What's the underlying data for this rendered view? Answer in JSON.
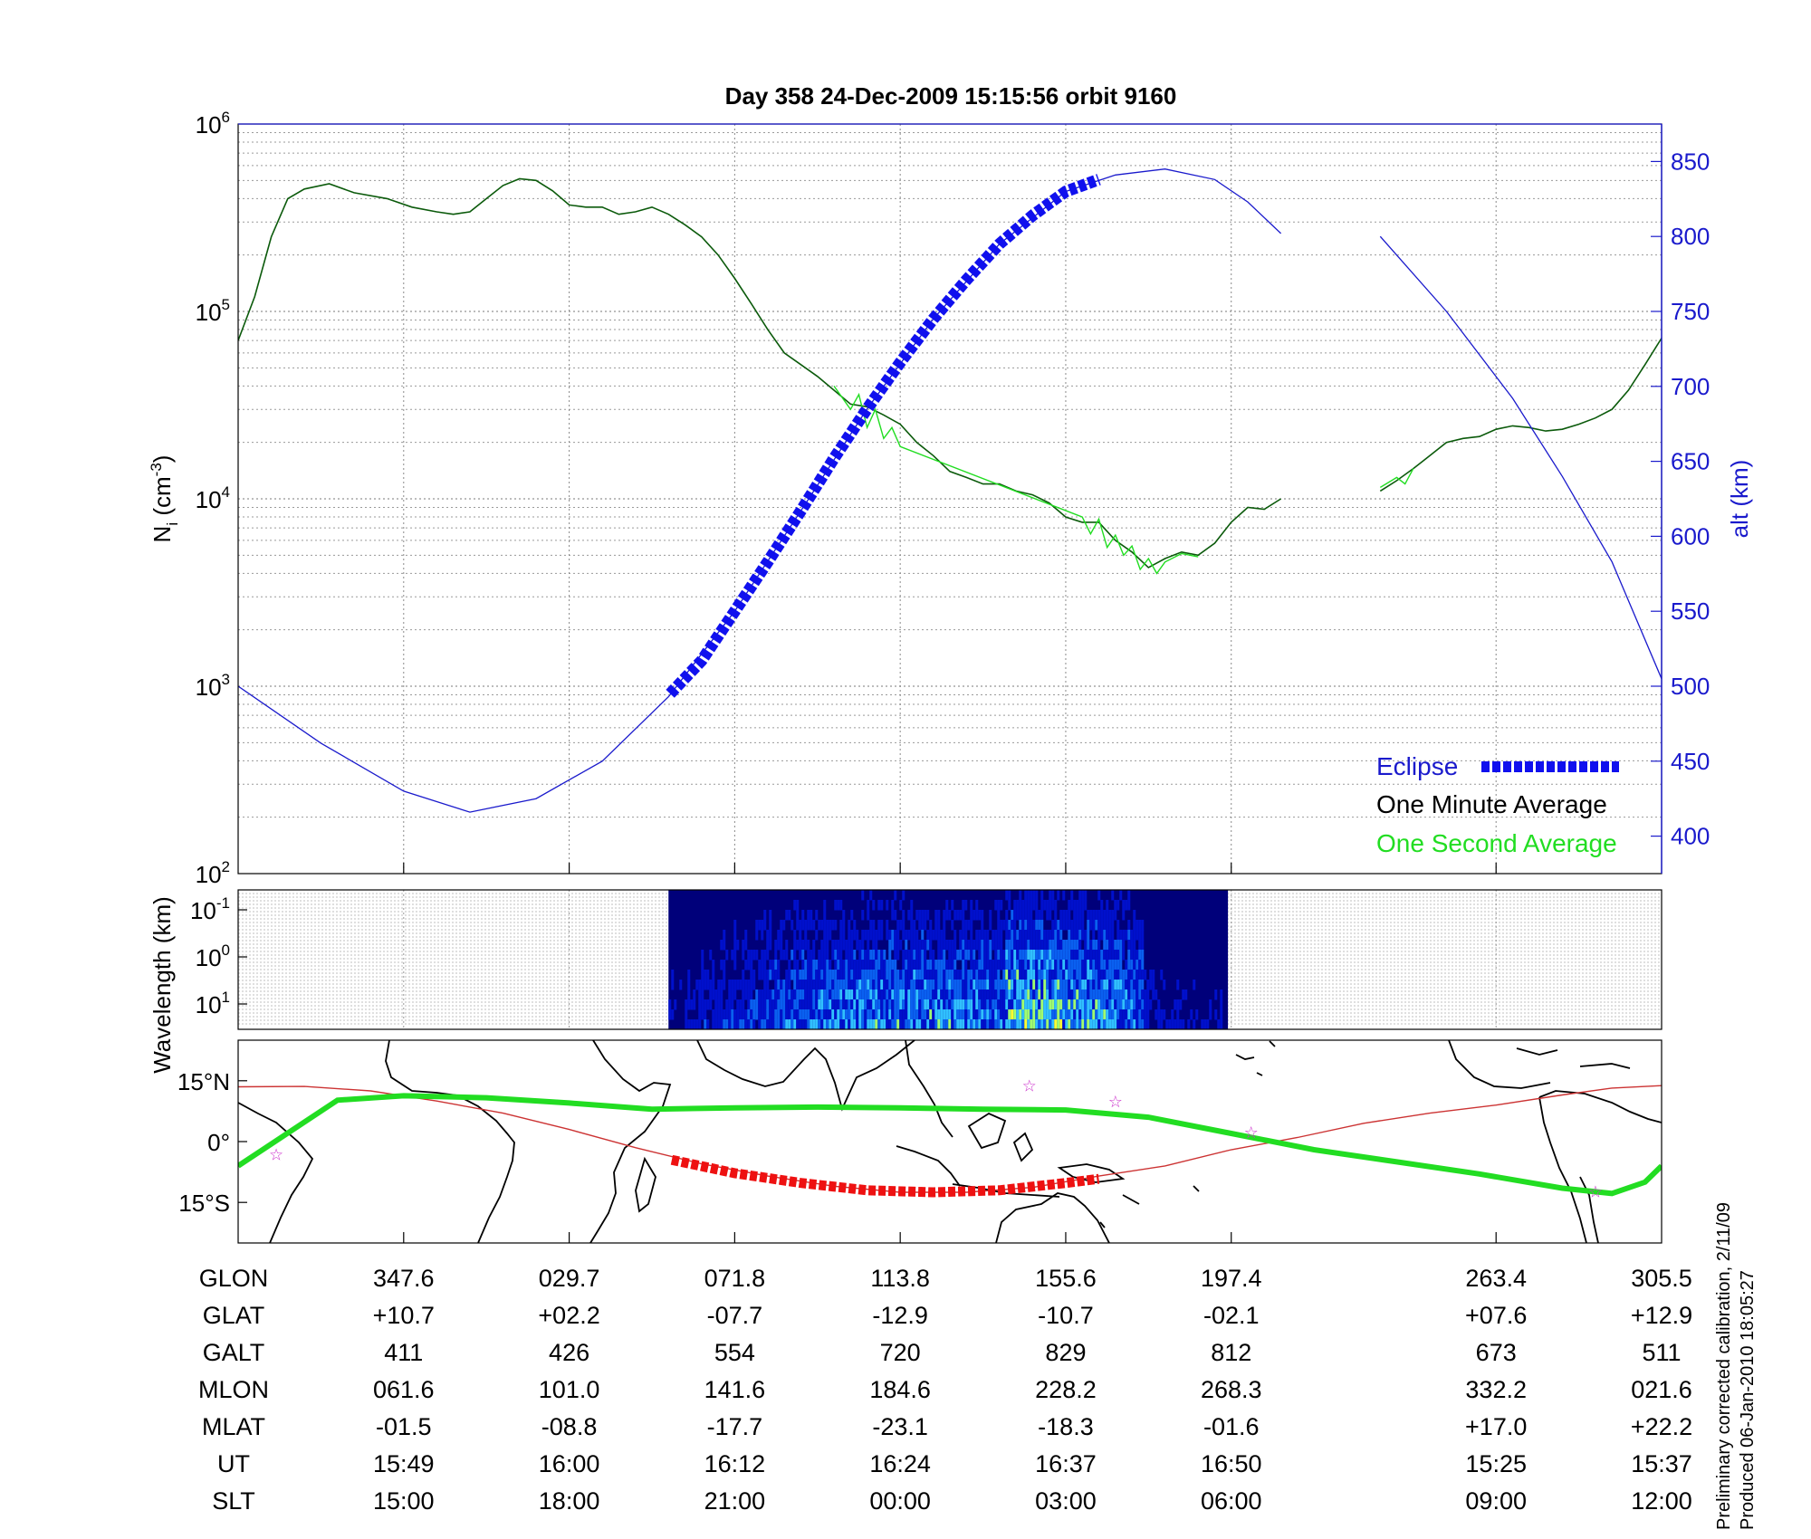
{
  "title": "Day 358  24-Dec-2009 15:15:56   orbit 9160",
  "chart_data": [
    {
      "type": "line",
      "panel": "density",
      "ylabel": "N",
      "ylabel_sub": "i",
      "ylabel_unit_open": " (cm",
      "ylabel_unit_sup": "-3",
      "ylabel_unit_close": ")",
      "yscale": "log",
      "ylim": [
        100,
        1000000
      ],
      "yticks": [
        {
          "base": "10",
          "exp": "2",
          "value": 100
        },
        {
          "base": "10",
          "exp": "3",
          "value": 1000
        },
        {
          "base": "10",
          "exp": "4",
          "value": 10000
        },
        {
          "base": "10",
          "exp": "5",
          "value": 100000
        },
        {
          "base": "10",
          "exp": "6",
          "value": 1000000
        }
      ],
      "xlim": [
        0,
        8.6
      ],
      "right_axis": {
        "label": "alt (km)",
        "ylim": [
          375,
          875
        ],
        "ticks": [
          "400",
          "450",
          "500",
          "550",
          "600",
          "650",
          "700",
          "750",
          "800",
          "850"
        ]
      },
      "series": [
        {
          "name": "One Minute Average",
          "color": "#0b5a0b",
          "segments": [
            [
              [
                0,
                70000
              ],
              [
                0.1,
                120000
              ],
              [
                0.2,
                250000
              ],
              [
                0.3,
                400000
              ],
              [
                0.4,
                450000
              ],
              [
                0.55,
                480000
              ],
              [
                0.7,
                430000
              ],
              [
                0.9,
                400000
              ],
              [
                1.05,
                360000
              ],
              [
                1.2,
                340000
              ],
              [
                1.3,
                330000
              ],
              [
                1.4,
                340000
              ],
              [
                1.5,
                400000
              ],
              [
                1.6,
                470000
              ],
              [
                1.7,
                510000
              ],
              [
                1.8,
                500000
              ],
              [
                1.9,
                440000
              ],
              [
                2.0,
                370000
              ],
              [
                2.1,
                360000
              ],
              [
                2.2,
                360000
              ],
              [
                2.3,
                330000
              ],
              [
                2.4,
                340000
              ],
              [
                2.5,
                360000
              ],
              [
                2.6,
                330000
              ],
              [
                2.7,
                290000
              ],
              [
                2.8,
                250000
              ],
              [
                2.9,
                200000
              ],
              [
                3.0,
                150000
              ],
              [
                3.1,
                110000
              ],
              [
                3.2,
                80000
              ],
              [
                3.3,
                60000
              ],
              [
                3.4,
                52000
              ],
              [
                3.5,
                45000
              ],
              [
                3.6,
                38000
              ],
              [
                3.7,
                32000
              ],
              [
                3.8,
                31000
              ],
              [
                3.9,
                28000
              ],
              [
                4.0,
                25000
              ],
              [
                4.1,
                20000
              ],
              [
                4.2,
                17000
              ],
              [
                4.3,
                14000
              ],
              [
                4.4,
                13000
              ],
              [
                4.5,
                12000
              ],
              [
                4.6,
                12000
              ],
              [
                4.7,
                11000
              ],
              [
                4.8,
                10500
              ],
              [
                4.9,
                9500
              ],
              [
                5.0,
                8000
              ],
              [
                5.1,
                7500
              ],
              [
                5.2,
                7500
              ],
              [
                5.3,
                6000
              ],
              [
                5.4,
                5200
              ],
              [
                5.5,
                4300
              ],
              [
                5.6,
                4800
              ],
              [
                5.7,
                5200
              ],
              [
                5.8,
                5000
              ],
              [
                5.9,
                5800
              ],
              [
                6.0,
                7500
              ],
              [
                6.1,
                9000
              ],
              [
                6.2,
                8800
              ],
              [
                6.3,
                10000
              ]
            ],
            [
              [
                6.9,
                11000
              ],
              [
                7.0,
                12500
              ],
              [
                7.1,
                14500
              ],
              [
                7.2,
                17000
              ],
              [
                7.3,
                20000
              ],
              [
                7.4,
                21000
              ],
              [
                7.5,
                21500
              ],
              [
                7.6,
                23500
              ],
              [
                7.7,
                24500
              ],
              [
                7.8,
                24000
              ],
              [
                7.9,
                23000
              ],
              [
                8.0,
                23500
              ],
              [
                8.1,
                25000
              ],
              [
                8.2,
                27000
              ],
              [
                8.3,
                30000
              ],
              [
                8.4,
                38000
              ],
              [
                8.5,
                52000
              ],
              [
                8.6,
                72000
              ]
            ]
          ]
        },
        {
          "name": "One Second Average",
          "color": "#22dd22",
          "segments": [
            [
              [
                3.6,
                40000
              ],
              [
                3.7,
                30000
              ],
              [
                3.75,
                36000
              ],
              [
                3.8,
                24000
              ],
              [
                3.85,
                30000
              ],
              [
                3.9,
                21000
              ],
              [
                3.95,
                24000
              ],
              [
                4.0,
                19000
              ],
              [
                5.1,
                8000
              ],
              [
                5.15,
                6500
              ],
              [
                5.2,
                7800
              ],
              [
                5.25,
                5500
              ],
              [
                5.3,
                6400
              ],
              [
                5.35,
                5000
              ],
              [
                5.4,
                5600
              ],
              [
                5.45,
                4200
              ],
              [
                5.5,
                4800
              ],
              [
                5.55,
                4000
              ],
              [
                5.6,
                4600
              ],
              [
                5.7,
                5100
              ],
              [
                5.8,
                4900
              ]
            ],
            [
              [
                6.9,
                11500
              ],
              [
                7.0,
                13000
              ],
              [
                7.05,
                12000
              ],
              [
                7.1,
                14500
              ]
            ]
          ]
        },
        {
          "name": "alt",
          "color": "#1a1acc",
          "axis": "right",
          "segments": [
            [
              [
                0,
                500
              ],
              [
                0.5,
                462
              ],
              [
                1.0,
                430
              ],
              [
                1.4,
                416
              ],
              [
                1.8,
                425
              ],
              [
                2.2,
                450
              ],
              [
                2.6,
                493
              ],
              [
                3.0,
                550
              ],
              [
                3.4,
                617
              ],
              [
                3.8,
                685
              ],
              [
                4.2,
                745
              ],
              [
                4.6,
                795
              ],
              [
                5.0,
                830
              ],
              [
                5.3,
                841
              ],
              [
                5.6,
                845
              ],
              [
                5.9,
                838
              ],
              [
                6.1,
                823
              ],
              [
                6.3,
                802
              ]
            ],
            [
              [
                6.9,
                800
              ],
              [
                7.3,
                750
              ],
              [
                7.7,
                692
              ],
              [
                8.0,
                640
              ],
              [
                8.3,
                583
              ],
              [
                8.6,
                505
              ]
            ]
          ]
        },
        {
          "name": "Eclipse",
          "color": "#1010ee",
          "axis": "right",
          "points": [
            [
              2.61,
              495
            ],
            [
              2.8,
              517
            ],
            [
              3.0,
              550
            ],
            [
              3.2,
              583
            ],
            [
              3.4,
              617
            ],
            [
              3.6,
              652
            ],
            [
              3.8,
              685
            ],
            [
              4.0,
              716
            ],
            [
              4.2,
              745
            ],
            [
              4.4,
              771
            ],
            [
              4.6,
              795
            ],
            [
              4.8,
              814
            ],
            [
              5.0,
              830
            ],
            [
              5.2,
              838
            ]
          ]
        }
      ],
      "legend": [
        "Eclipse",
        "One Minute Average",
        "One Second Average"
      ],
      "legend_position": "bottom-right",
      "grid": true
    },
    {
      "type": "heatmap",
      "panel": "spectrogram",
      "ylabel": "Wavelength (km)",
      "yscale": "log",
      "yticks": [
        {
          "base": "10",
          "exp": "-1"
        },
        {
          "base": "10",
          "exp": "0"
        },
        {
          "base": "10",
          "exp": "1"
        }
      ],
      "data_xrange": [
        2.6,
        5.98
      ],
      "colormap": [
        "#00007a",
        "#0010cc",
        "#0a60f0",
        "#30c0ff",
        "#a0ff70",
        "#ffff30"
      ]
    },
    {
      "type": "map",
      "panel": "ground-track",
      "yticks": [
        "15°N",
        "0°",
        "15°S"
      ],
      "ylim": [
        -25,
        25
      ],
      "track_glat": {
        "name": "satellite ground track",
        "color": "#22dd22",
        "points": [
          [
            0,
            -6
          ],
          [
            0.6,
            10.2
          ],
          [
            1.0,
            11.3
          ],
          [
            1.5,
            10.8
          ],
          [
            2.0,
            9.5
          ],
          [
            2.5,
            8
          ],
          [
            3.0,
            8.3
          ],
          [
            3.5,
            8.5
          ],
          [
            4.0,
            8.3
          ],
          [
            4.5,
            8
          ],
          [
            5.0,
            7.8
          ],
          [
            5.5,
            6
          ],
          [
            6.0,
            2
          ],
          [
            6.5,
            -2
          ],
          [
            7.0,
            -5
          ],
          [
            7.5,
            -8
          ],
          [
            8.0,
            -11.5
          ],
          [
            8.3,
            -12.8
          ],
          [
            8.5,
            -10
          ],
          [
            8.6,
            -6
          ]
        ]
      },
      "dip_equator": {
        "color": "#cc3333",
        "points": [
          [
            0,
            13.5
          ],
          [
            0.4,
            13.6
          ],
          [
            0.8,
            12.5
          ],
          [
            1.2,
            10
          ],
          [
            1.6,
            7
          ],
          [
            2.0,
            3
          ],
          [
            2.4,
            -1.5
          ],
          [
            2.8,
            -5.5
          ],
          [
            3.2,
            -8.5
          ],
          [
            3.6,
            -11
          ],
          [
            4.0,
            -12.5
          ],
          [
            4.4,
            -12.5
          ],
          [
            4.8,
            -11.3
          ],
          [
            5.2,
            -8.5
          ],
          [
            5.6,
            -6
          ],
          [
            6.0,
            -2
          ],
          [
            6.4,
            1
          ],
          [
            6.8,
            4.5
          ],
          [
            7.2,
            7
          ],
          [
            7.6,
            9
          ],
          [
            8.0,
            11.5
          ],
          [
            8.3,
            13.2
          ],
          [
            8.6,
            13.8
          ]
        ]
      },
      "eclipse_track": {
        "color": "#ee1111",
        "points": [
          [
            2.62,
            -4.5
          ],
          [
            3.0,
            -7.8
          ],
          [
            3.4,
            -10.2
          ],
          [
            3.8,
            -12
          ],
          [
            4.2,
            -12.5
          ],
          [
            4.6,
            -12
          ],
          [
            5.0,
            -10.2
          ],
          [
            5.2,
            -9.2
          ]
        ]
      },
      "markers": [
        [
          0.23,
          -3
        ],
        [
          4.78,
          14
        ],
        [
          5.3,
          10
        ],
        [
          6.12,
          2.5
        ],
        [
          8.2,
          -12.2
        ]
      ]
    }
  ],
  "table": {
    "rows": [
      {
        "label": "GLON",
        "values": [
          "347.6",
          "029.7",
          "071.8",
          "113.8",
          "155.6",
          "197.4",
          "263.4",
          "305.5"
        ]
      },
      {
        "label": "GLAT",
        "values": [
          "+10.7",
          "+02.2",
          "-07.7",
          "-12.9",
          "-10.7",
          "-02.1",
          "+07.6",
          "+12.9"
        ]
      },
      {
        "label": "GALT",
        "values": [
          "411",
          "426",
          "554",
          "720",
          "829",
          "812",
          "673",
          "511"
        ]
      },
      {
        "label": "MLON",
        "values": [
          "061.6",
          "101.0",
          "141.6",
          "184.6",
          "228.2",
          "268.3",
          "332.2",
          "021.6"
        ]
      },
      {
        "label": "MLAT",
        "values": [
          "-01.5",
          "-08.8",
          "-17.7",
          "-23.1",
          "-18.3",
          "-01.6",
          "+17.0",
          "+22.2"
        ]
      },
      {
        "label": "UT",
        "values": [
          "15:49",
          "16:00",
          "16:12",
          "16:24",
          "16:37",
          "16:50",
          "15:25",
          "15:37"
        ]
      },
      {
        "label": "SLT",
        "values": [
          "15:00",
          "18:00",
          "21:00",
          "00:00",
          "03:00",
          "06:00",
          "09:00",
          "12:00"
        ]
      }
    ],
    "tick_positions": [
      1,
      2,
      3,
      4,
      5,
      6,
      7.6,
      8.6
    ]
  },
  "footnote": {
    "line1": "Preliminary corrected calibration, 2/11/09",
    "line2": "Produced 06-Jan-2010 18:05:27"
  }
}
